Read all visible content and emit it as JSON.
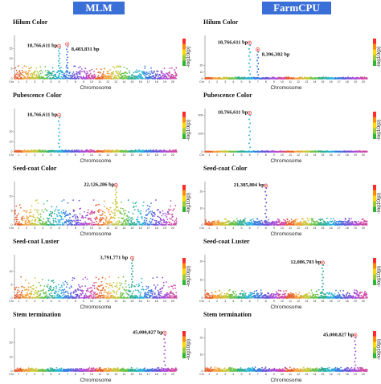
{
  "headers": {
    "left": "MLM",
    "right": "FarmCPU"
  },
  "chart_data": [
    {
      "type": "scatter",
      "method": "MLM",
      "title": "Hilum Color",
      "xlabel": "Chromosome",
      "ylabel": "-log10(p)",
      "y_ticks": [
        "0",
        "5",
        "10",
        "15"
      ],
      "categories": [
        "Chr",
        "1",
        "2",
        "3",
        "4",
        "5",
        "6",
        "7",
        "8",
        "9",
        "10",
        "11",
        "12",
        "13",
        "14",
        "15",
        "16",
        "17",
        "18",
        "19",
        "20"
      ],
      "annotations": [
        {
          "label": "18,766,611 bp",
          "chromosome": 6
        },
        {
          "label": "8,483,831 bp",
          "chromosome": 7
        }
      ],
      "peaks": [
        {
          "chromosome": 6,
          "value": 15
        },
        {
          "chromosome": 7,
          "value": 16
        }
      ],
      "baseline": 4.0,
      "ylim": [
        0,
        20
      ]
    },
    {
      "type": "scatter",
      "method": "FarmCPU",
      "title": "Hilum Color",
      "xlabel": "Chromosome",
      "ylabel": "-log10(p)",
      "y_ticks": [
        "0",
        "10",
        "20"
      ],
      "categories": [
        "Chr",
        "1",
        "2",
        "3",
        "4",
        "5",
        "6",
        "7",
        "8",
        "9",
        "10",
        "11",
        "12",
        "13",
        "14",
        "15",
        "16",
        "17",
        "18",
        "19",
        "20"
      ],
      "annotations": [
        {
          "label": "18,766,611 bp",
          "chromosome": 6
        },
        {
          "label": "8,396,302 bp",
          "chromosome": 7
        }
      ],
      "peaks": [
        {
          "chromosome": 6,
          "value": 50
        },
        {
          "chromosome": 7,
          "value": 40
        }
      ],
      "baseline": 1.5,
      "ylim": [
        0,
        60
      ]
    },
    {
      "type": "scatter",
      "method": "MLM",
      "title": "Pubescence Color",
      "xlabel": "Chromosome",
      "ylabel": "-log10(p)",
      "y_ticks": [
        "0",
        "10",
        "20"
      ],
      "categories": [
        "Chr",
        "1",
        "2",
        "3",
        "4",
        "5",
        "6",
        "7",
        "8",
        "9",
        "10",
        "11",
        "12",
        "13",
        "14",
        "15",
        "16",
        "17",
        "18",
        "19",
        "20"
      ],
      "annotations": [
        {
          "label": "18,766,611 bp",
          "chromosome": 6
        }
      ],
      "peaks": [
        {
          "chromosome": 6,
          "value": 34
        }
      ],
      "baseline": 1.2,
      "ylim": [
        0,
        40
      ]
    },
    {
      "type": "scatter",
      "method": "FarmCPU",
      "title": "Pubescence Color",
      "xlabel": "Chromosome",
      "ylabel": "-log10(p)",
      "y_ticks": [
        "0",
        "100",
        "200"
      ],
      "categories": [
        "Chr",
        "1",
        "2",
        "3",
        "4",
        "5",
        "6",
        "7",
        "8",
        "9",
        "10",
        "11",
        "12",
        "13",
        "14",
        "15",
        "16",
        "17",
        "18",
        "19",
        "20"
      ],
      "annotations": [
        {
          "label": "18,766,611 bp",
          "chromosome": 6
        }
      ],
      "peaks": [
        {
          "chromosome": 6,
          "value": 200
        }
      ],
      "baseline": 3,
      "ylim": [
        0,
        220
      ]
    },
    {
      "type": "scatter",
      "method": "MLM",
      "title": "Seed-coat Color",
      "xlabel": "Chromosome",
      "ylabel": "-log10(p)",
      "y_ticks": [
        "0",
        "5",
        "10"
      ],
      "categories": [
        "Chr",
        "1",
        "2",
        "3",
        "4",
        "5",
        "6",
        "7",
        "8",
        "9",
        "10",
        "11",
        "12",
        "13",
        "14",
        "15",
        "16",
        "17",
        "18",
        "19",
        "20"
      ],
      "annotations": [
        {
          "label": "22,126,286 bp",
          "chromosome": 13
        }
      ],
      "peaks": [
        {
          "chromosome": 13,
          "value": 13
        }
      ],
      "baseline": 5.5,
      "ylim": [
        0,
        14
      ]
    },
    {
      "type": "scatter",
      "method": "FarmCPU",
      "title": "Seed-coat Color",
      "xlabel": "Chromosome",
      "ylabel": "-log10(p)",
      "y_ticks": [
        "0",
        "10",
        "20"
      ],
      "categories": [
        "Chr",
        "1",
        "2",
        "3",
        "4",
        "5",
        "6",
        "7",
        "8",
        "9",
        "10",
        "11",
        "12",
        "13",
        "14",
        "15",
        "16",
        "17",
        "18",
        "19",
        "20"
      ],
      "annotations": [
        {
          "label": "21,385,804 bp",
          "chromosome": 8
        }
      ],
      "peaks": [
        {
          "chromosome": 8,
          "value": 22
        }
      ],
      "baseline": 2.5,
      "ylim": [
        0,
        24
      ]
    },
    {
      "type": "scatter",
      "method": "MLM",
      "title": "Seed-coat Luster",
      "xlabel": "Chromosome",
      "ylabel": "-log10(p)",
      "y_ticks": [
        "0",
        "5",
        "10"
      ],
      "categories": [
        "Chr",
        "1",
        "2",
        "3",
        "4",
        "5",
        "6",
        "7",
        "8",
        "9",
        "10",
        "11",
        "12",
        "13",
        "14",
        "15",
        "16",
        "17",
        "18",
        "19",
        "20"
      ],
      "annotations": [
        {
          "label": "3,791,771 bp",
          "chromosome": 15
        }
      ],
      "peaks": [
        {
          "chromosome": 15,
          "value": 14
        }
      ],
      "baseline": 5.0,
      "ylim": [
        0,
        15
      ]
    },
    {
      "type": "scatter",
      "method": "FarmCPU",
      "title": "Seed-coat Luster",
      "xlabel": "Chromosome",
      "ylabel": "-log10(p)",
      "y_ticks": [
        "0",
        "10",
        "20"
      ],
      "categories": [
        "Chr",
        "1",
        "2",
        "3",
        "4",
        "5",
        "6",
        "7",
        "8",
        "9",
        "10",
        "11",
        "12",
        "13",
        "14",
        "15",
        "16",
        "17",
        "18",
        "19",
        "20"
      ],
      "annotations": [
        {
          "label": "12,086,703 bp",
          "chromosome": 15
        }
      ],
      "peaks": [
        {
          "chromosome": 15,
          "value": 18
        }
      ],
      "baseline": 2.8,
      "ylim": [
        0,
        22
      ]
    },
    {
      "type": "scatter",
      "method": "MLM",
      "title": "Stem termination",
      "xlabel": "Chromosome",
      "ylabel": "-log10(p)",
      "y_ticks": [
        "0",
        "10",
        "20"
      ],
      "categories": [
        "Chr",
        "1",
        "2",
        "3",
        "4",
        "5",
        "6",
        "7",
        "8",
        "9",
        "10",
        "11",
        "12",
        "13",
        "14",
        "15",
        "16",
        "17",
        "18",
        "19",
        "20"
      ],
      "annotations": [
        {
          "label": "45,000,827 bp",
          "chromosome": 19
        }
      ],
      "peaks": [
        {
          "chromosome": 19,
          "value": 25
        }
      ],
      "baseline": 1.5,
      "ylim": [
        0,
        28
      ]
    },
    {
      "type": "scatter",
      "method": "FarmCPU",
      "title": "Stem termination",
      "xlabel": "Chromosome",
      "ylabel": "-log10(p)",
      "y_ticks": [
        "0",
        "10",
        "20"
      ],
      "categories": [
        "Chr",
        "1",
        "2",
        "3",
        "4",
        "5",
        "6",
        "7",
        "8",
        "9",
        "10",
        "11",
        "12",
        "13",
        "14",
        "15",
        "16",
        "17",
        "18",
        "19",
        "20"
      ],
      "annotations": [
        {
          "label": "45,000,827 bp",
          "chromosome": 19
        }
      ],
      "peaks": [
        {
          "chromosome": 19,
          "value": 20
        }
      ],
      "baseline": 1.5,
      "ylim": [
        0,
        24
      ]
    }
  ],
  "colors": {
    "header_bg": "#3a6fd8",
    "marker": "#e8403a",
    "chromosome_palette": [
      "#e8612c",
      "#f2a23a",
      "#c9c73a",
      "#6cc24a",
      "#2fae8f",
      "#2bb3d6",
      "#3a7be0",
      "#6a55d8",
      "#a84ed6",
      "#d04aa6"
    ],
    "density_scale": [
      "#2eb82e",
      "#9acd32",
      "#ffd700",
      "#ff8c00",
      "#ff2a2a"
    ]
  }
}
